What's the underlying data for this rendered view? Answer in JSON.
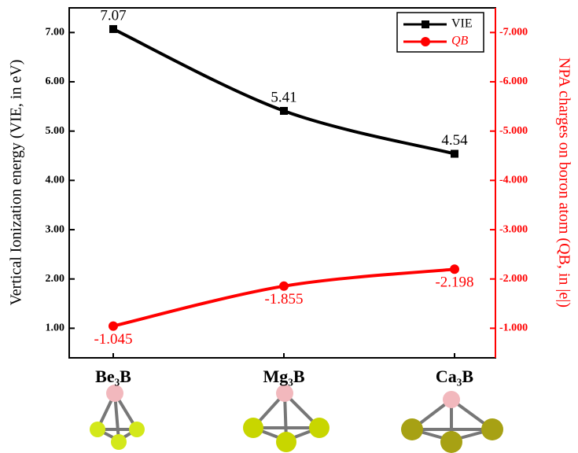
{
  "chart_data": {
    "type": "line",
    "categories": [
      "Be₃B",
      "Mg₃B",
      "Ca₃B"
    ],
    "ylabel": "Vertical Ionization energy (VIE, in eV)",
    "y2label": "NPA charges on boron atom (QB, in |e|)",
    "ylim": [
      0.4,
      7.5
    ],
    "yticks": [
      {
        "value": 1,
        "label": "1.00"
      },
      {
        "value": 2,
        "label": "2.00"
      },
      {
        "value": 3,
        "label": "3.00"
      },
      {
        "value": 4,
        "label": "4.00"
      },
      {
        "value": 5,
        "label": "5.00"
      },
      {
        "value": 6,
        "label": "6.00"
      },
      {
        "value": 7,
        "label": "7.00"
      }
    ],
    "y2lim": [
      -0.4,
      -7.5
    ],
    "y2ticks": [
      {
        "value": -1,
        "label": "-1.000"
      },
      {
        "value": -2,
        "label": "-2.000"
      },
      {
        "value": -3,
        "label": "-3.000"
      },
      {
        "value": -4,
        "label": "-4.000"
      },
      {
        "value": -5,
        "label": "-5.000"
      },
      {
        "value": -6,
        "label": "-6.000"
      },
      {
        "value": -7,
        "label": "-7.000"
      }
    ],
    "y2color": "#ff0000",
    "legend": "upper right",
    "series": [
      {
        "name": "VIE",
        "color": "#000000",
        "marker": "square",
        "values": [
          7.07,
          5.41,
          4.54
        ]
      },
      {
        "name": "QB",
        "color": "#ff0000",
        "marker": "circle",
        "axis": "y2",
        "values": [
          -1.045,
          -1.855,
          -2.198
        ]
      }
    ]
  }
}
